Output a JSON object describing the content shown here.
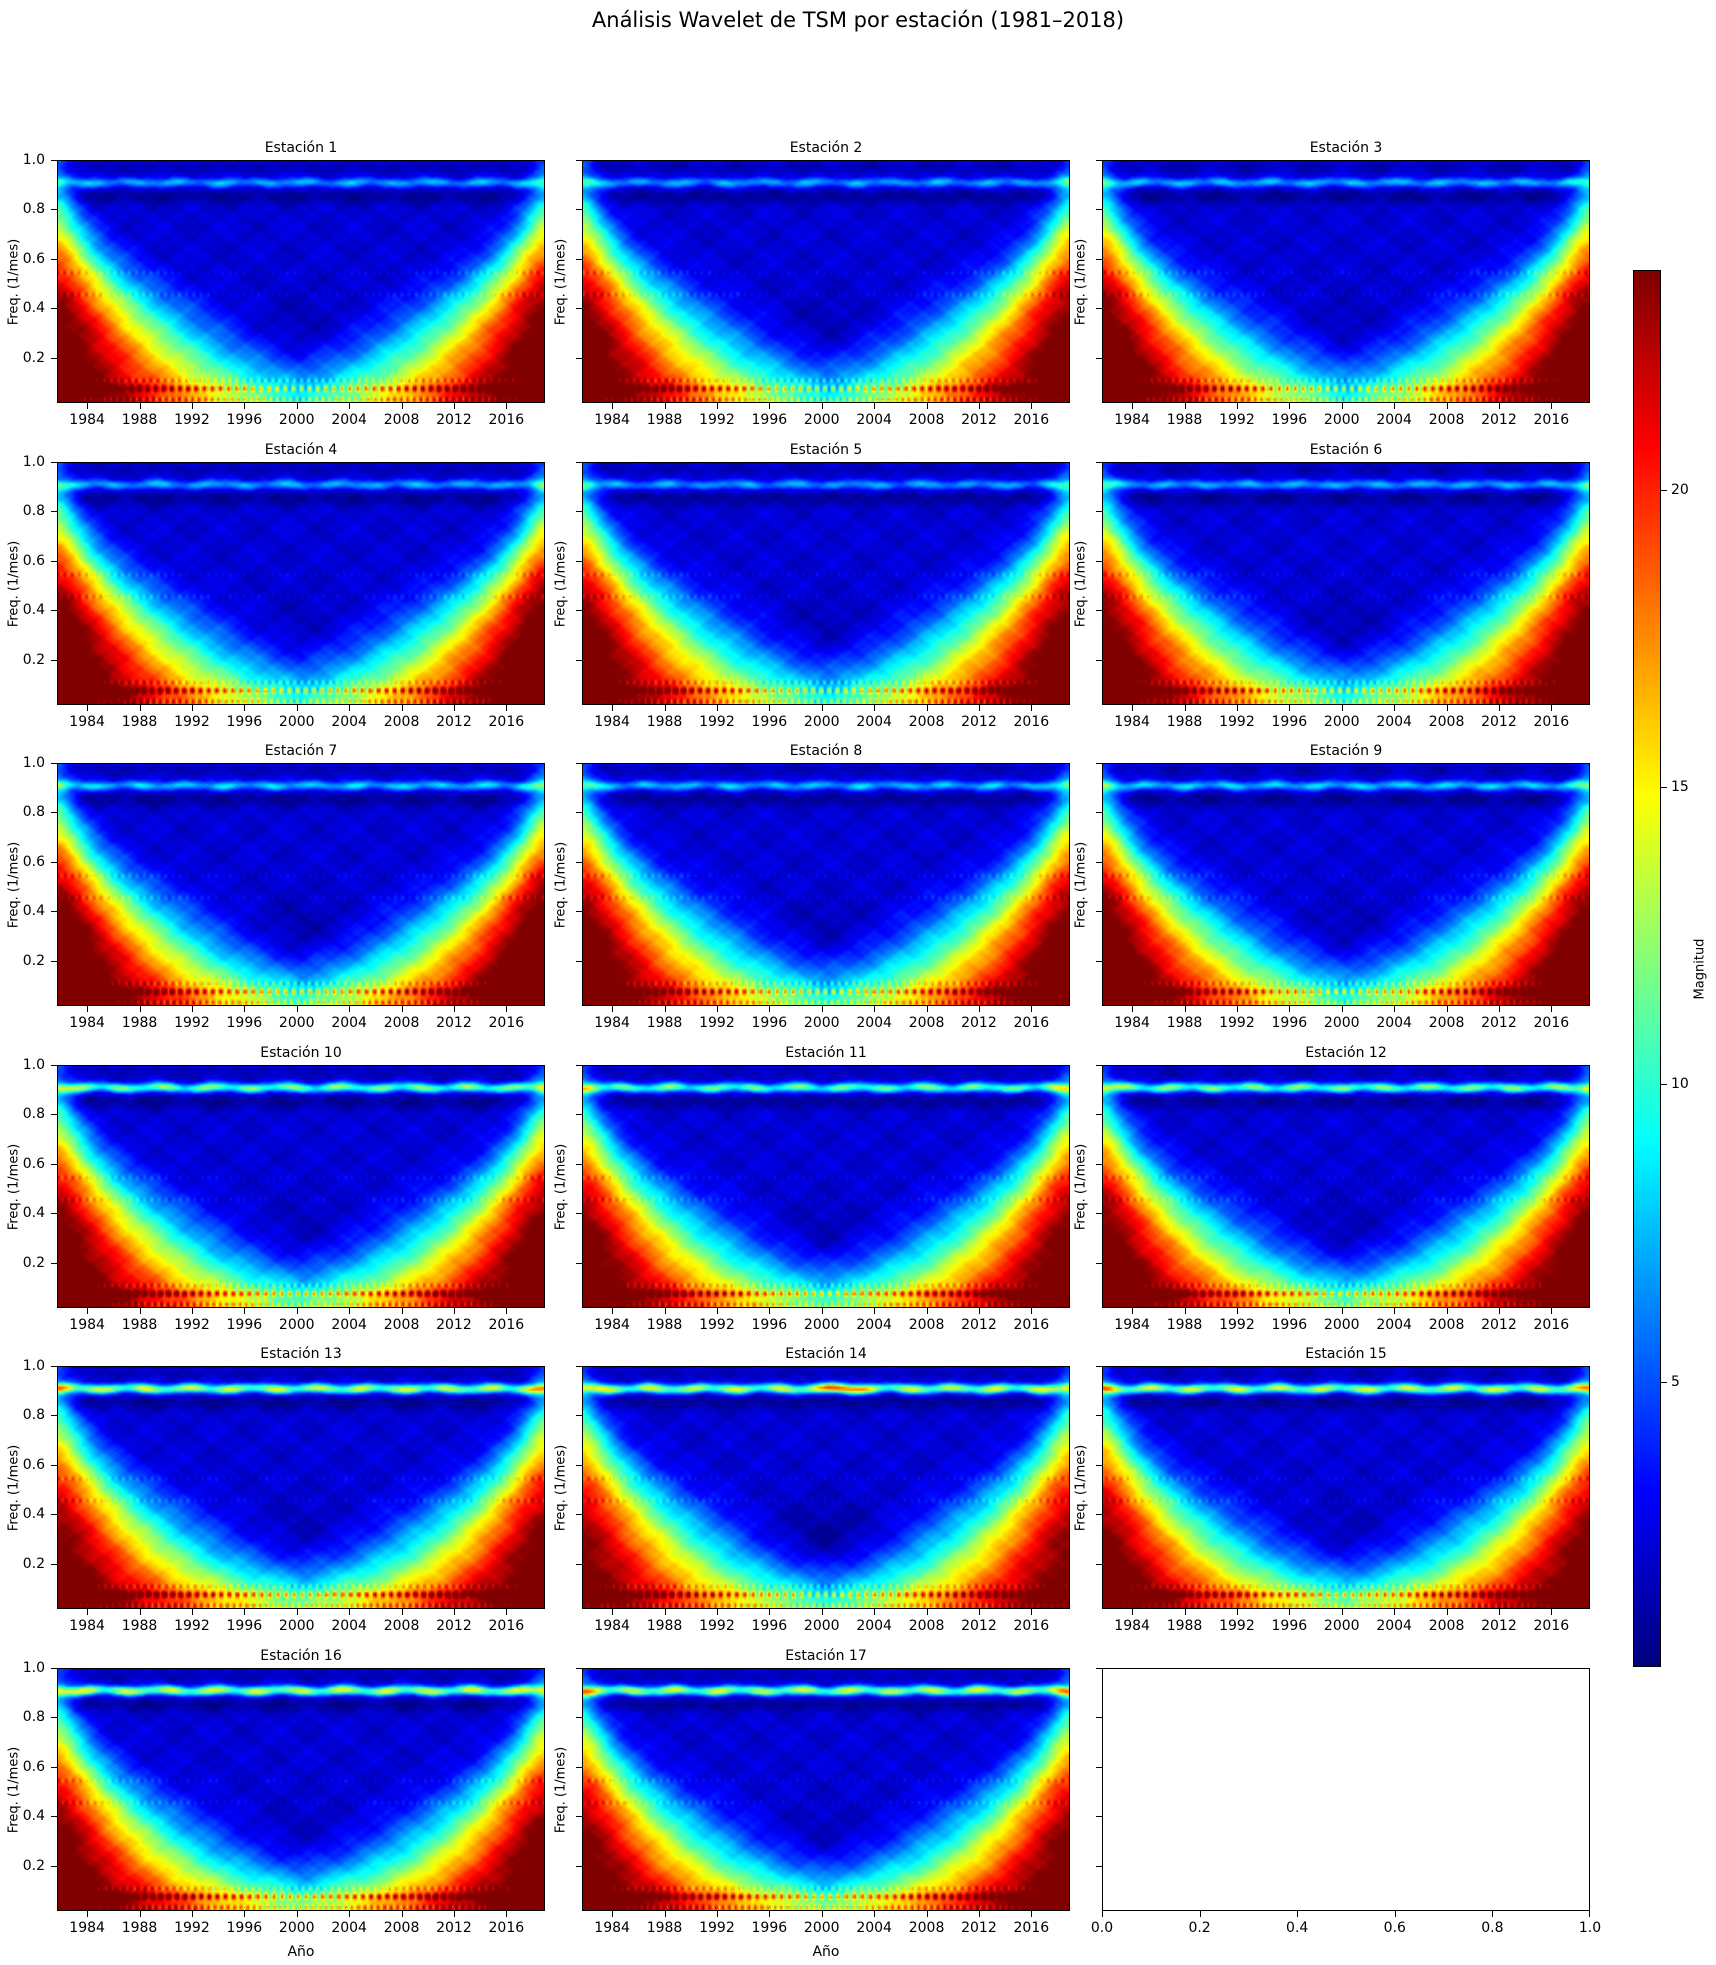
{
  "figure": {
    "suptitle": "Análisis Wavelet de TSM por estación (1981–2018)",
    "background": "#ffffff"
  },
  "axes": {
    "ylabel": "Freq. (1/mes)",
    "xlabel": "Año",
    "ytick_labels": [
      "1.0",
      "0.8",
      "0.6",
      "0.4",
      "0.2"
    ],
    "ytick_values": [
      1.0,
      0.8,
      0.6,
      0.4,
      0.2
    ],
    "xtick_years": [
      1984,
      1988,
      1992,
      1996,
      2000,
      2004,
      2008,
      2012,
      2016
    ]
  },
  "colorbar": {
    "label": "Magnitud",
    "tick_values": [
      20,
      15,
      10,
      5
    ],
    "vmin": 0.2,
    "vmax": 23.7,
    "colormap": "jet",
    "top_color": "#7f0000",
    "bottom_color": "#00007f"
  },
  "chart_data": {
    "type": "heatmap",
    "title": "Análisis Wavelet de TSM por estación (1981–2018)",
    "xlabel": "Año",
    "ylabel": "Freq. (1/mes)",
    "colorbar_label": "Magnitud",
    "x_range": [
      1981.7,
      2018.95
    ],
    "y_range": [
      0.017,
      1.0
    ],
    "magnitude_range": [
      0.2,
      23.7
    ],
    "colormap": "jet",
    "annual_band_freq": 0.912,
    "grid": "off",
    "stations": [
      {
        "label": "Estación 1",
        "params": {
          "band": 5.6,
          "edge": 1.0,
          "glow": 1.2,
          "hole": 1.0,
          "linek": 1.0,
          "seed": 1,
          "hot": 0
        }
      },
      {
        "label": "Estación 2",
        "params": {
          "band": 5.4,
          "edge": 0.99,
          "glow": 1.2,
          "hole": 1.0,
          "linek": 1.0,
          "seed": 2,
          "hot": 0
        }
      },
      {
        "label": "Estación 3",
        "params": {
          "band": 5.8,
          "edge": 1.02,
          "glow": 1.3,
          "hole": 0.9,
          "linek": 1.0,
          "seed": 3,
          "hot": 0
        }
      },
      {
        "label": "Estación 4",
        "params": {
          "band": 5.6,
          "edge": 1.04,
          "glow": 1.4,
          "hole": 0.8,
          "linek": 1.1,
          "seed": 4,
          "hot": 0
        }
      },
      {
        "label": "Estación 5",
        "params": {
          "band": 5.3,
          "edge": 1.0,
          "glow": 1.4,
          "hole": 1.0,
          "linek": 1.0,
          "seed": 5,
          "hot": 0
        }
      },
      {
        "label": "Estación 6",
        "params": {
          "band": 5.6,
          "edge": 1.0,
          "glow": 1.9,
          "hole": 1.1,
          "linek": 1.1,
          "seed": 6,
          "hot": 0
        }
      },
      {
        "label": "Estación 7",
        "params": {
          "band": 6.5,
          "edge": 1.06,
          "glow": 2.2,
          "hole": 1.2,
          "linek": 1.1,
          "seed": 7,
          "hot": 0
        }
      },
      {
        "label": "Estación 8",
        "params": {
          "band": 6.0,
          "edge": 1.0,
          "glow": 2.0,
          "hole": 1.0,
          "linek": 1.0,
          "seed": 8,
          "hot": 0
        }
      },
      {
        "label": "Estación 9",
        "params": {
          "band": 6.5,
          "edge": 1.03,
          "glow": 2.0,
          "hole": 1.0,
          "linek": 1.1,
          "seed": 9,
          "hot": 0
        }
      },
      {
        "label": "Estación 10",
        "params": {
          "band": 10.5,
          "edge": 1.0,
          "glow": 2.8,
          "hole": 0.9,
          "linek": 1.5,
          "seed": 10,
          "hot": 0
        }
      },
      {
        "label": "Estación 11",
        "params": {
          "band": 10.0,
          "edge": 0.98,
          "glow": 2.8,
          "hole": 1.0,
          "linek": 1.5,
          "seed": 11,
          "hot": 0
        }
      },
      {
        "label": "Estación 12",
        "params": {
          "band": 10.5,
          "edge": 1.0,
          "glow": 3.2,
          "hole": 1.0,
          "linek": 1.5,
          "seed": 12,
          "hot": 0
        }
      },
      {
        "label": "Estación 13",
        "params": {
          "band": 12.5,
          "edge": 0.96,
          "glow": 4.0,
          "hole": 0.9,
          "linek": 1.4,
          "seed": 13,
          "hot": 0
        }
      },
      {
        "label": "Estación 14",
        "params": {
          "band": 12.5,
          "edge": 0.93,
          "glow": 2.6,
          "hole": 1.5,
          "linek": 1.0,
          "seed": 14,
          "hot": 8
        }
      },
      {
        "label": "Estación 15",
        "params": {
          "band": 12.5,
          "edge": 0.96,
          "glow": 4.0,
          "hole": 0.9,
          "linek": 1.4,
          "seed": 15,
          "hot": 0
        }
      },
      {
        "label": "Estación 16",
        "params": {
          "band": 12.8,
          "edge": 0.98,
          "glow": 4.2,
          "hole": 0.8,
          "linek": 1.5,
          "seed": 16,
          "hot": 0
        }
      },
      {
        "label": "Estación 17",
        "params": {
          "band": 12.5,
          "edge": 0.96,
          "glow": 4.2,
          "hole": 0.9,
          "linek": 1.4,
          "seed": 17,
          "hot": 0
        }
      }
    ],
    "empty_panel": {
      "xtick_labels": [
        "0.0",
        "0.2",
        "0.4",
        "0.6",
        "0.8",
        "1.0"
      ],
      "xtick_values": [
        0.0,
        0.2,
        0.4,
        0.6,
        0.8,
        1.0
      ]
    }
  }
}
